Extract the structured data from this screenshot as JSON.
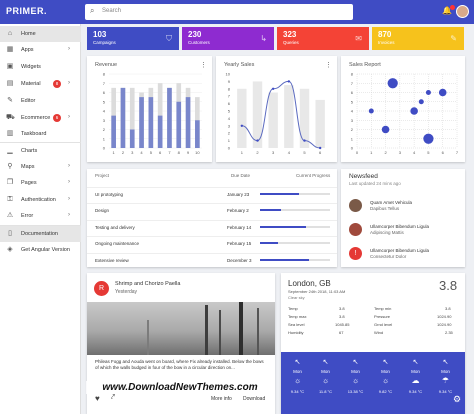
{
  "app": {
    "logo": "PRIMER."
  },
  "search": {
    "placeholder": "Search",
    "icon": "search-icon"
  },
  "sidebar": {
    "items": [
      {
        "label": "Home",
        "icon": "home-icon",
        "chev": "",
        "badge": ""
      },
      {
        "label": "Apps",
        "icon": "apps-icon",
        "chev": "›",
        "badge": ""
      },
      {
        "label": "Widgets",
        "icon": "widgets-icon",
        "chev": "",
        "badge": ""
      },
      {
        "label": "Material",
        "icon": "material-icon",
        "chev": "›",
        "badge": "8"
      },
      {
        "label": "Editor",
        "icon": "editor-icon",
        "chev": "",
        "badge": ""
      },
      {
        "label": "Ecommerce",
        "icon": "cart-icon",
        "chev": "›",
        "badge": "6"
      },
      {
        "label": "Taskboard",
        "icon": "taskboard-icon",
        "chev": "",
        "badge": ""
      },
      {
        "label": "Charts",
        "icon": "charts-icon",
        "chev": "",
        "badge": ""
      },
      {
        "label": "Maps",
        "icon": "maps-icon",
        "chev": "›",
        "badge": ""
      },
      {
        "label": "Pages",
        "icon": "pages-icon",
        "chev": "›",
        "badge": ""
      },
      {
        "label": "Authentication",
        "icon": "lock-icon",
        "chev": "›",
        "badge": ""
      },
      {
        "label": "Error",
        "icon": "error-icon",
        "chev": "›",
        "badge": ""
      },
      {
        "label": "Documentation",
        "icon": "book-icon",
        "chev": "",
        "badge": ""
      },
      {
        "label": "Get Angular Version",
        "icon": "angular-icon",
        "chev": "",
        "badge": ""
      }
    ]
  },
  "stats": [
    {
      "value": "103",
      "label": "Campaigns",
      "color": "#3f4cc4"
    },
    {
      "value": "230",
      "label": "Customers",
      "color": "#8e2bd0"
    },
    {
      "value": "323",
      "label": "Queries",
      "color": "#f44336"
    },
    {
      "value": "870",
      "label": "Invoices",
      "color": "#f6c21c"
    }
  ],
  "revenue": {
    "title": "Revenue"
  },
  "yearly": {
    "title": "Yearly Sales"
  },
  "salesreport": {
    "title": "Sales Report"
  },
  "chart_data": [
    {
      "type": "bar",
      "title": "Revenue",
      "categories": [
        "1",
        "2",
        "3",
        "4",
        "5",
        "6",
        "7",
        "8",
        "9",
        "10"
      ],
      "series": [
        {
          "values": [
            3.5,
            6.5,
            2,
            5.5,
            5.5,
            3.5,
            6.5,
            5,
            5.5,
            3
          ]
        },
        {
          "values": [
            6.5,
            6.5,
            6.5,
            6,
            6.5,
            7,
            6.5,
            7,
            6.5,
            5.5
          ]
        }
      ],
      "ylim": [
        0,
        8
      ],
      "yticks": [
        "0",
        "1",
        "2",
        "3",
        "4",
        "5",
        "6",
        "7",
        "8"
      ]
    },
    {
      "type": "line",
      "title": "Yearly Sales",
      "categories": [
        "1",
        "2",
        "3",
        "4",
        "5",
        "6"
      ],
      "series": [
        {
          "values": [
            3,
            1,
            8,
            9,
            1,
            0
          ]
        }
      ],
      "background_bars": [
        8,
        9,
        7.5,
        8.5,
        8,
        6.5
      ],
      "ylim": [
        0,
        10
      ],
      "yticks": [
        "0",
        "1",
        "2",
        "3",
        "4",
        "5",
        "6",
        "7",
        "8",
        "9",
        "10"
      ]
    },
    {
      "type": "scatter",
      "title": "Sales Report",
      "points": [
        {
          "x": 1,
          "y": 4,
          "r": 1
        },
        {
          "x": 2,
          "y": 2,
          "r": 2
        },
        {
          "x": 2.5,
          "y": 7,
          "r": 3
        },
        {
          "x": 4,
          "y": 4,
          "r": 2
        },
        {
          "x": 5,
          "y": 1,
          "r": 3
        },
        {
          "x": 5,
          "y": 6,
          "r": 1
        },
        {
          "x": 6,
          "y": 6,
          "r": 2
        },
        {
          "x": 4.5,
          "y": 5,
          "r": 1
        }
      ],
      "xlim": [
        0,
        7
      ],
      "ylim": [
        0,
        8
      ],
      "xticks": [
        "0",
        "1",
        "2",
        "3",
        "4",
        "5",
        "6",
        "7"
      ],
      "yticks": [
        "0",
        "1",
        "2",
        "3",
        "4",
        "5",
        "6",
        "7",
        "8"
      ]
    }
  ],
  "projects": {
    "headers": {
      "project": "Project",
      "due": "Due Date",
      "progress": "Current Progress"
    },
    "rows": [
      {
        "name": "UI prototyping",
        "due": "January 23",
        "progress": 0.55
      },
      {
        "name": "Design",
        "due": "February 2",
        "progress": 0.3
      },
      {
        "name": "Testing and delivery",
        "due": "February 14",
        "progress": 0.65
      },
      {
        "name": "Ongoing maintenance",
        "due": "February 15",
        "progress": 0.25
      },
      {
        "name": "Extensive review",
        "due": "December 3",
        "progress": 0.7
      }
    ]
  },
  "newsfeed": {
    "title": "Newsfeed",
    "updated": "Last updated 24 mins ago",
    "items": [
      {
        "name": "Quam Amet Vehicula",
        "text": "Dapibus Tellus",
        "avatar": "#7a5a48"
      },
      {
        "name": "Ullamcorper Bibendum Ligula",
        "text": "Adipiscing Mattis",
        "avatar": "#a04a3c"
      },
      {
        "name": "Ullamcorper Bibendum Ligula",
        "text": "Consectetur Dolor",
        "avatar": "#e53935"
      }
    ]
  },
  "post": {
    "initial": "R",
    "title": "Shrimp and Chorizo Paella",
    "sub": "Yesterday",
    "body": "Phileas Fogg and Aouda went on board, where Fix already installed. Below the bows of which the walls budged in four of the bow in a circular direction on...",
    "more": "More info",
    "download": "Download"
  },
  "weather": {
    "city": "London, GB",
    "date": "September 24th 2018, 11:03 AM",
    "cond": "Clear sky",
    "temp": "3.8",
    "rows": [
      {
        "k": "Temp",
        "v": "3.8",
        "k2": "Temp min",
        "v2": "3.8"
      },
      {
        "k": "Temp max",
        "v": "3.8",
        "k2": "Pressure",
        "v2": "1024.90"
      },
      {
        "k": "Sea level",
        "v": "1045.85",
        "k2": "Grnd level",
        "v2": "1024.90"
      },
      {
        "k": "Humidity",
        "v": "67",
        "k2": "Wind",
        "v2": "2.35"
      }
    ]
  },
  "forecast": [
    {
      "day": "Mon",
      "icon": "sun-icon",
      "temp": "9.34 °C"
    },
    {
      "day": "Mon",
      "icon": "sun-icon",
      "temp": "11.8 °C"
    },
    {
      "day": "Mon",
      "icon": "sun-icon",
      "temp": "13.38 °C"
    },
    {
      "day": "Mon",
      "icon": "sun-icon",
      "temp": "9.82 °C"
    },
    {
      "day": "Mon",
      "icon": "cloud-icon",
      "temp": "9.34 °C"
    },
    {
      "day": "Mon",
      "icon": "rain-icon",
      "temp": "9.34 °C"
    }
  ],
  "watermark": "www.DownloadNewThemes.com"
}
